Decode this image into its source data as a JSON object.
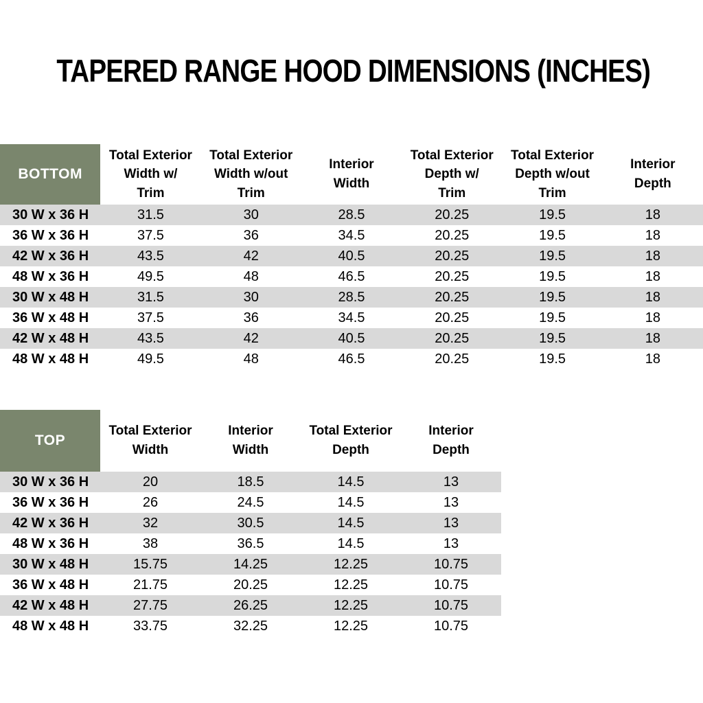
{
  "title": "TAPERED RANGE HOOD DIMENSIONS (INCHES)",
  "colors": {
    "section_label_bg": "#7A866D",
    "section_label_text": "#FFFFFF",
    "row_stripe": "#D9D9D9",
    "text": "#000000"
  },
  "tables": [
    {
      "label": "BOTTOM",
      "columns": [
        {
          "lines": [
            "Total Exterior",
            "Width w/",
            "Trim"
          ]
        },
        {
          "lines": [
            "Total Exterior",
            "Width w/out",
            "Trim"
          ]
        },
        {
          "lines": [
            "Interior",
            "Width"
          ]
        },
        {
          "lines": [
            "Total Exterior",
            "Depth w/",
            "Trim"
          ]
        },
        {
          "lines": [
            "Total Exterior",
            "Depth w/out",
            "Trim"
          ]
        },
        {
          "lines": [
            "Interior",
            "Depth"
          ]
        }
      ],
      "rows": [
        {
          "label": "30 W x 36 H",
          "values": [
            "31.5",
            "30",
            "28.5",
            "20.25",
            "19.5",
            "18"
          ]
        },
        {
          "label": "36 W x 36 H",
          "values": [
            "37.5",
            "36",
            "34.5",
            "20.25",
            "19.5",
            "18"
          ]
        },
        {
          "label": "42 W x 36 H",
          "values": [
            "43.5",
            "42",
            "40.5",
            "20.25",
            "19.5",
            "18"
          ]
        },
        {
          "label": "48 W x 36 H",
          "values": [
            "49.5",
            "48",
            "46.5",
            "20.25",
            "19.5",
            "18"
          ]
        },
        {
          "label": "30 W x 48 H",
          "values": [
            "31.5",
            "30",
            "28.5",
            "20.25",
            "19.5",
            "18"
          ]
        },
        {
          "label": "36 W x 48 H",
          "values": [
            "37.5",
            "36",
            "34.5",
            "20.25",
            "19.5",
            "18"
          ]
        },
        {
          "label": "42 W x 48 H",
          "values": [
            "43.5",
            "42",
            "40.5",
            "20.25",
            "19.5",
            "18"
          ]
        },
        {
          "label": "48 W x 48 H",
          "values": [
            "49.5",
            "48",
            "46.5",
            "20.25",
            "19.5",
            "18"
          ]
        }
      ]
    },
    {
      "label": "TOP",
      "columns": [
        {
          "lines": [
            "Total Exterior",
            "Width"
          ]
        },
        {
          "lines": [
            "Interior",
            "Width"
          ]
        },
        {
          "lines": [
            "Total Exterior",
            "Depth"
          ]
        },
        {
          "lines": [
            "Interior",
            "Depth"
          ]
        }
      ],
      "rows": [
        {
          "label": "30 W x 36 H",
          "values": [
            "20",
            "18.5",
            "14.5",
            "13"
          ]
        },
        {
          "label": "36 W x 36 H",
          "values": [
            "26",
            "24.5",
            "14.5",
            "13"
          ]
        },
        {
          "label": "42 W x 36 H",
          "values": [
            "32",
            "30.5",
            "14.5",
            "13"
          ]
        },
        {
          "label": "48 W x 36 H",
          "values": [
            "38",
            "36.5",
            "14.5",
            "13"
          ]
        },
        {
          "label": "30 W x 48 H",
          "values": [
            "15.75",
            "14.25",
            "12.25",
            "10.75"
          ]
        },
        {
          "label": "36 W x 48 H",
          "values": [
            "21.75",
            "20.25",
            "12.25",
            "10.75"
          ]
        },
        {
          "label": "42 W x 48 H",
          "values": [
            "27.75",
            "26.25",
            "12.25",
            "10.75"
          ]
        },
        {
          "label": "48 W x 48 H",
          "values": [
            "33.75",
            "32.25",
            "12.25",
            "10.75"
          ]
        }
      ]
    }
  ]
}
